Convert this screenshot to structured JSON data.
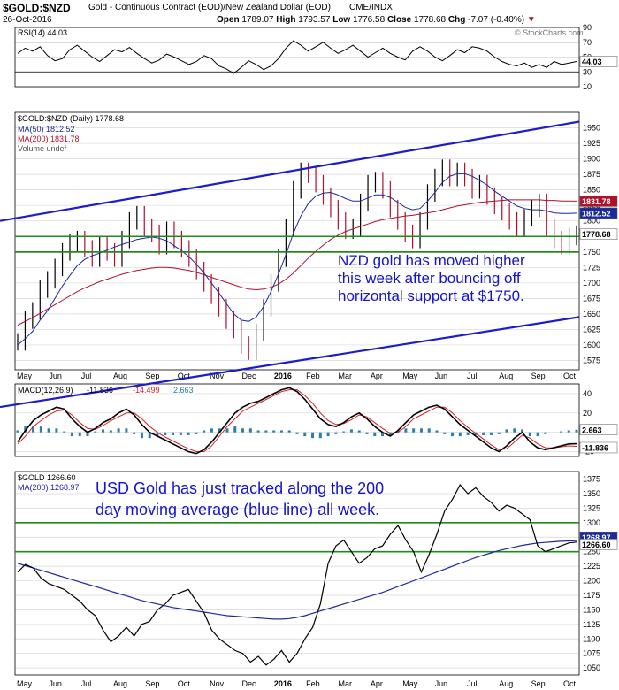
{
  "header": {
    "symbol": "$GOLD:$NZD",
    "description": "Gold - Continuous Contract (EOD)/New Zealand Dollar (EOD)",
    "exchange": "CME/INDX",
    "date": "26-Oct-2016",
    "ohlc": {
      "open_label": "Open",
      "open": "1789.07",
      "high_label": "High",
      "high": "1793.57",
      "low_label": "Low",
      "low": "1776.58",
      "close_label": "Close",
      "close": "1778.68",
      "chg_label": "Chg",
      "chg": "-7.07 (-0.40%)"
    },
    "watermark": "© StockCharts.com"
  },
  "colors": {
    "price": "#000000",
    "ma50": "#1a2a9c",
    "ma200": "#b0102a",
    "channel": "#1c1ccc",
    "support_red": "#e02020",
    "support_green": "#1c8c1c",
    "grid": "#d8d8d8",
    "annotation": "#1414cc",
    "macd_hist": "#2c7fa8",
    "ma_label": "#1818aa"
  },
  "x_axis": {
    "labels_1": [
      "May",
      "Jun",
      "Jul",
      "Aug",
      "Sep",
      "Oct",
      "Nov",
      "Dec",
      "2016",
      "Feb",
      "Mar",
      "Apr",
      "May",
      "Jun",
      "Jul",
      "Aug",
      "Sep",
      "Oct"
    ],
    "labels_2": [
      "May",
      "Jun",
      "Jul",
      "Aug",
      "Sep",
      "Oct",
      "Nov",
      "Dec",
      "2016",
      "Feb",
      "Mar",
      "Apr",
      "May",
      "Jun",
      "Jul",
      "Aug",
      "Sep",
      "Oct"
    ]
  },
  "chart_data": [
    {
      "panel": "rsi",
      "type": "line",
      "legend": "RSI(14) 44.03",
      "last_value": 44.03,
      "ylim": [
        10,
        90
      ],
      "ticks": [
        10,
        30,
        50,
        70,
        90
      ],
      "reference_lines": [
        30,
        70
      ],
      "values": [
        55,
        62,
        58,
        64,
        52,
        45,
        48,
        60,
        66,
        58,
        50,
        44,
        52,
        60,
        57,
        63,
        55,
        48,
        42,
        46,
        54,
        50,
        45,
        40,
        44,
        52,
        48,
        38,
        34,
        28,
        36,
        45,
        40,
        33,
        38,
        48,
        62,
        72,
        66,
        58,
        64,
        70,
        62,
        55,
        60,
        66,
        58,
        50,
        56,
        62,
        55,
        50,
        46,
        58,
        64,
        58,
        50,
        45,
        52,
        60,
        56,
        64,
        62,
        58,
        50,
        44,
        40,
        38,
        42,
        36,
        40,
        36,
        44,
        40,
        42,
        44
      ]
    },
    {
      "panel": "price",
      "type": "ohlc",
      "legend": [
        "$GOLD:$NZD (Daily) 1778.68",
        "MA(50) 1812.52",
        "MA(200) 1831.78",
        "Volume undef"
      ],
      "ylim": [
        1560,
        1975
      ],
      "ticks": [
        1575,
        1600,
        1625,
        1650,
        1675,
        1700,
        1725,
        1750,
        1775,
        1800,
        1825,
        1850,
        1875,
        1900,
        1925,
        1950
      ],
      "price_tags": [
        "1831.78",
        "1812.52",
        "1778.68"
      ],
      "close": [
        1605,
        1640,
        1655,
        1690,
        1705,
        1725,
        1750,
        1765,
        1770,
        1755,
        1740,
        1760,
        1750,
        1740,
        1770,
        1800,
        1810,
        1790,
        1780,
        1760,
        1785,
        1770,
        1755,
        1740,
        1720,
        1700,
        1680,
        1660,
        1640,
        1625,
        1600,
        1590,
        1620,
        1660,
        1700,
        1740,
        1790,
        1850,
        1880,
        1875,
        1860,
        1840,
        1820,
        1800,
        1785,
        1790,
        1830,
        1860,
        1865,
        1850,
        1820,
        1800,
        1780,
        1770,
        1800,
        1845,
        1870,
        1885,
        1870,
        1880,
        1870,
        1850,
        1860,
        1840,
        1825,
        1815,
        1800,
        1790,
        1805,
        1820,
        1830,
        1790,
        1770,
        1760,
        1775,
        1778.68
      ],
      "ma50": [
        1600,
        1610,
        1622,
        1640,
        1655,
        1675,
        1695,
        1712,
        1728,
        1738,
        1744,
        1748,
        1753,
        1758,
        1762,
        1766,
        1770,
        1772,
        1774,
        1772,
        1768,
        1760,
        1752,
        1742,
        1730,
        1716,
        1700,
        1684,
        1667,
        1650,
        1640,
        1638,
        1645,
        1662,
        1686,
        1714,
        1746,
        1780,
        1808,
        1828,
        1840,
        1845,
        1846,
        1842,
        1836,
        1832,
        1832,
        1837,
        1842,
        1842,
        1838,
        1830,
        1822,
        1818,
        1820,
        1832,
        1846,
        1862,
        1872,
        1876,
        1876,
        1872,
        1865,
        1858,
        1848,
        1840,
        1832,
        1824,
        1820,
        1818,
        1818,
        1816,
        1813,
        1812,
        1812,
        1812.52
      ],
      "ma200": [
        1632,
        1638,
        1644,
        1651,
        1658,
        1665,
        1672,
        1679,
        1686,
        1692,
        1697,
        1702,
        1706,
        1710,
        1714,
        1717,
        1720,
        1722,
        1724,
        1725,
        1725,
        1724,
        1722,
        1720,
        1717,
        1713,
        1709,
        1705,
        1701,
        1697,
        1693,
        1690,
        1689,
        1690,
        1693,
        1698,
        1706,
        1716,
        1728,
        1740,
        1751,
        1761,
        1770,
        1777,
        1783,
        1787,
        1791,
        1795,
        1799,
        1802,
        1804,
        1806,
        1808,
        1809,
        1811,
        1813,
        1815,
        1818,
        1821,
        1824,
        1826,
        1828,
        1830,
        1831,
        1832,
        1833,
        1834,
        1834,
        1834,
        1834,
        1834,
        1833,
        1833,
        1832,
        1832,
        1831.78
      ],
      "support_lines": [
        {
          "value": 1775,
          "color": "red"
        },
        {
          "value": 1750,
          "color": "red"
        },
        {
          "value": 1775,
          "color": "green"
        },
        {
          "value": 1750,
          "color": "green"
        }
      ],
      "channel": {
        "upper": {
          "start": {
            "x": 0,
            "y": 1800
          },
          "end": {
            "x": 1,
            "y": 1960
          }
        },
        "lower": {
          "start": {
            "x": 0,
            "y": 1500
          },
          "end": {
            "x": 1,
            "y": 1645
          }
        }
      },
      "annotation": [
        "NZD gold has moved higher",
        "this week after bouncing off",
        "horizontal support at $1750."
      ]
    },
    {
      "panel": "macd",
      "type": "line",
      "legend": {
        "name": "MACD(12,26,9)",
        "macd": "-11.836",
        "signal": "-14.499",
        "hist": "2.663"
      },
      "ylim": [
        -25,
        50
      ],
      "ticks": [
        -20,
        0,
        20,
        40
      ],
      "tick_labels": [
        "-20",
        "0",
        "20",
        "40"
      ],
      "value_tags": [
        "2.663",
        "-11.836"
      ],
      "macd": [
        -10,
        2,
        12,
        18,
        22,
        26,
        24,
        14,
        6,
        0,
        4,
        10,
        14,
        20,
        24,
        18,
        8,
        0,
        -4,
        -8,
        -12,
        -16,
        -20,
        -22,
        -18,
        -10,
        0,
        10,
        20,
        26,
        30,
        32,
        36,
        40,
        44,
        46,
        42,
        34,
        24,
        14,
        8,
        6,
        10,
        16,
        20,
        14,
        6,
        0,
        -4,
        2,
        10,
        18,
        22,
        26,
        28,
        24,
        16,
        8,
        2,
        -4,
        -10,
        -16,
        -20,
        -14,
        -6,
        0,
        -10,
        -16,
        -18,
        -16,
        -14,
        -12,
        -11.836
      ],
      "signal": [
        -12,
        -4,
        6,
        12,
        18,
        22,
        23,
        18,
        10,
        4,
        3,
        7,
        12,
        16,
        20,
        20,
        14,
        6,
        0,
        -5,
        -9,
        -13,
        -17,
        -20,
        -20,
        -14,
        -4,
        6,
        14,
        22,
        26,
        30,
        34,
        38,
        42,
        44,
        44,
        38,
        30,
        20,
        12,
        8,
        9,
        13,
        18,
        16,
        10,
        4,
        -1,
        0,
        6,
        14,
        18,
        22,
        26,
        26,
        20,
        12,
        5,
        -1,
        -7,
        -13,
        -18,
        -17,
        -10,
        -3,
        -6,
        -12,
        -16,
        -16,
        -15,
        -14,
        -14.499
      ]
    },
    {
      "panel": "usd_gold",
      "type": "line",
      "legend": [
        "$GOLD 1266.60",
        "MA(200) 1268.97"
      ],
      "ylim": [
        1038,
        1388
      ],
      "ticks": [
        1050,
        1075,
        1100,
        1125,
        1150,
        1175,
        1200,
        1225,
        1250,
        1275,
        1300,
        1325,
        1350,
        1375
      ],
      "price_tags": [
        "1268.97",
        "1266.60"
      ],
      "price": [
        1215,
        1228,
        1222,
        1205,
        1195,
        1190,
        1185,
        1175,
        1165,
        1150,
        1140,
        1115,
        1095,
        1105,
        1120,
        1105,
        1125,
        1130,
        1150,
        1160,
        1175,
        1180,
        1185,
        1165,
        1145,
        1115,
        1100,
        1090,
        1080,
        1075,
        1060,
        1070,
        1055,
        1065,
        1080,
        1060,
        1075,
        1100,
        1120,
        1160,
        1230,
        1260,
        1270,
        1250,
        1230,
        1240,
        1255,
        1260,
        1280,
        1295,
        1270,
        1250,
        1215,
        1245,
        1280,
        1320,
        1340,
        1365,
        1350,
        1360,
        1345,
        1335,
        1320,
        1330,
        1325,
        1315,
        1305,
        1260,
        1250,
        1255,
        1260,
        1265,
        1266.6
      ],
      "ma200": [
        1230,
        1226,
        1222,
        1218,
        1214,
        1210,
        1206,
        1202,
        1198,
        1194,
        1190,
        1186,
        1182,
        1178,
        1174,
        1170,
        1166,
        1163,
        1160,
        1157,
        1154,
        1152,
        1150,
        1148,
        1146,
        1144,
        1142,
        1140,
        1139,
        1138,
        1137,
        1136,
        1135,
        1134,
        1134,
        1135,
        1137,
        1140,
        1144,
        1148,
        1152,
        1156,
        1160,
        1164,
        1168,
        1172,
        1176,
        1180,
        1185,
        1190,
        1195,
        1200,
        1205,
        1210,
        1215,
        1220,
        1225,
        1230,
        1235,
        1240,
        1244,
        1248,
        1252,
        1255,
        1258,
        1261,
        1263,
        1265,
        1266,
        1267,
        1268,
        1268.5,
        1268.97
      ],
      "support_lines": [
        {
          "value": 1300,
          "color": "green"
        },
        {
          "value": 1250,
          "color": "green"
        }
      ],
      "annotation": [
        "USD Gold has just tracked along the 200",
        "day moving average (blue line) all week."
      ]
    }
  ]
}
